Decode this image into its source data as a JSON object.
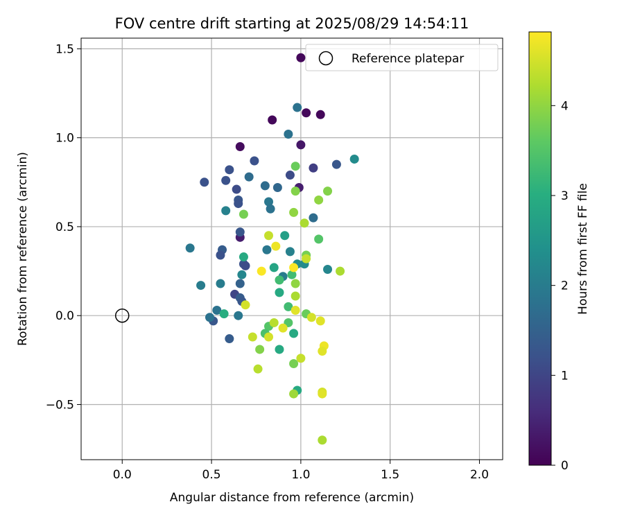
{
  "chart_data": {
    "type": "scatter",
    "title": "FOV centre drift starting at 2025/08/29 14:54:11",
    "xlabel": "Angular distance from reference (arcmin)",
    "ylabel": "Rotation from reference (arcmin)",
    "xlim": [
      -0.23,
      2.13
    ],
    "ylim": [
      -0.81,
      1.56
    ],
    "xticks": [
      0.0,
      0.5,
      1.0,
      1.5,
      2.0
    ],
    "xtick_labels": [
      "0.0",
      "0.5",
      "1.0",
      "1.5",
      "2.0"
    ],
    "yticks": [
      -0.5,
      0.0,
      0.5,
      1.0,
      1.5
    ],
    "ytick_labels": [
      "−0.5",
      "0.0",
      "0.5",
      "1.0",
      "1.5"
    ],
    "grid": true,
    "legend": {
      "placement": "top-right",
      "entries": [
        {
          "label": "Reference platepar",
          "marker": "open-circle",
          "color": "#000000"
        }
      ]
    },
    "reference_point": {
      "x": 0.0,
      "y": 0.0
    },
    "colorbar": {
      "label": "Hours from first FF file",
      "colormap": "viridis",
      "min": 0,
      "max": 4.82,
      "ticks": [
        0,
        1,
        2,
        3,
        4
      ],
      "tick_labels": [
        "0",
        "1",
        "2",
        "3",
        "4"
      ]
    },
    "points": [
      {
        "x": 1.0,
        "y": 1.45,
        "c": 0.1
      },
      {
        "x": 0.84,
        "y": 1.1,
        "c": 0.1
      },
      {
        "x": 1.03,
        "y": 1.14,
        "c": 0.1
      },
      {
        "x": 1.11,
        "y": 1.13,
        "c": 0.1
      },
      {
        "x": 0.66,
        "y": 0.95,
        "c": 0.15
      },
      {
        "x": 1.0,
        "y": 0.96,
        "c": 0.3
      },
      {
        "x": 0.99,
        "y": 0.72,
        "c": 0.4
      },
      {
        "x": 0.66,
        "y": 0.44,
        "c": 0.4
      },
      {
        "x": 0.74,
        "y": 0.87,
        "c": 1.2
      },
      {
        "x": 0.6,
        "y": 0.82,
        "c": 1.2
      },
      {
        "x": 1.07,
        "y": 0.83,
        "c": 0.9
      },
      {
        "x": 1.2,
        "y": 0.85,
        "c": 1.3
      },
      {
        "x": 0.46,
        "y": 0.75,
        "c": 1.2
      },
      {
        "x": 0.58,
        "y": 0.76,
        "c": 1.2
      },
      {
        "x": 0.64,
        "y": 0.71,
        "c": 1.1
      },
      {
        "x": 0.94,
        "y": 0.79,
        "c": 1.1
      },
      {
        "x": 0.65,
        "y": 0.65,
        "c": 1.3
      },
      {
        "x": 0.65,
        "y": 0.63,
        "c": 1.2
      },
      {
        "x": 0.66,
        "y": 0.47,
        "c": 1.3
      },
      {
        "x": 0.56,
        "y": 0.37,
        "c": 1.4
      },
      {
        "x": 0.55,
        "y": 0.34,
        "c": 1.2
      },
      {
        "x": 0.68,
        "y": 0.29,
        "c": 1.2
      },
      {
        "x": 0.69,
        "y": 0.28,
        "c": 1.1
      },
      {
        "x": 0.66,
        "y": 0.18,
        "c": 1.5
      },
      {
        "x": 0.63,
        "y": 0.12,
        "c": 1.0
      },
      {
        "x": 0.66,
        "y": 0.1,
        "c": 1.4
      },
      {
        "x": 0.67,
        "y": 0.08,
        "c": 1.3
      },
      {
        "x": 0.51,
        "y": -0.03,
        "c": 1.3
      },
      {
        "x": 0.6,
        "y": -0.13,
        "c": 1.4
      },
      {
        "x": 0.87,
        "y": 0.72,
        "c": 1.6
      },
      {
        "x": 0.8,
        "y": 0.73,
        "c": 1.7
      },
      {
        "x": 0.71,
        "y": 0.78,
        "c": 1.7
      },
      {
        "x": 0.98,
        "y": 1.17,
        "c": 1.8
      },
      {
        "x": 0.93,
        "y": 1.02,
        "c": 1.8
      },
      {
        "x": 1.3,
        "y": 0.88,
        "c": 2.3
      },
      {
        "x": 0.82,
        "y": 0.64,
        "c": 1.9
      },
      {
        "x": 0.83,
        "y": 0.6,
        "c": 1.8
      },
      {
        "x": 0.58,
        "y": 0.59,
        "c": 2.1
      },
      {
        "x": 1.07,
        "y": 0.55,
        "c": 1.7
      },
      {
        "x": 0.38,
        "y": 0.38,
        "c": 1.9
      },
      {
        "x": 0.81,
        "y": 0.37,
        "c": 1.9
      },
      {
        "x": 0.94,
        "y": 0.36,
        "c": 2.1
      },
      {
        "x": 0.98,
        "y": 0.29,
        "c": 2.3
      },
      {
        "x": 1.02,
        "y": 0.29,
        "c": 2.3
      },
      {
        "x": 1.15,
        "y": 0.26,
        "c": 2.2
      },
      {
        "x": 0.9,
        "y": 0.22,
        "c": 2.0
      },
      {
        "x": 0.44,
        "y": 0.17,
        "c": 2.0
      },
      {
        "x": 0.55,
        "y": 0.18,
        "c": 2.0
      },
      {
        "x": 0.67,
        "y": 0.23,
        "c": 2.2
      },
      {
        "x": 0.49,
        "y": -0.01,
        "c": 1.8
      },
      {
        "x": 0.53,
        "y": 0.03,
        "c": 1.8
      },
      {
        "x": 0.65,
        "y": 0.0,
        "c": 1.9
      },
      {
        "x": 0.91,
        "y": 0.45,
        "c": 2.7
      },
      {
        "x": 0.68,
        "y": 0.33,
        "c": 2.9
      },
      {
        "x": 0.85,
        "y": 0.27,
        "c": 2.8
      },
      {
        "x": 0.88,
        "y": 0.13,
        "c": 2.9
      },
      {
        "x": 0.57,
        "y": 0.01,
        "c": 3.0
      },
      {
        "x": 0.88,
        "y": -0.19,
        "c": 2.9
      },
      {
        "x": 0.96,
        "y": -0.1,
        "c": 2.9
      },
      {
        "x": 0.98,
        "y": -0.42,
        "c": 2.9
      },
      {
        "x": 0.88,
        "y": 0.2,
        "c": 3.3
      },
      {
        "x": 0.95,
        "y": 0.23,
        "c": 3.3
      },
      {
        "x": 0.93,
        "y": 0.05,
        "c": 3.3
      },
      {
        "x": 0.82,
        "y": -0.06,
        "c": 3.5
      },
      {
        "x": 0.8,
        "y": -0.1,
        "c": 3.4
      },
      {
        "x": 0.93,
        "y": -0.04,
        "c": 3.5
      },
      {
        "x": 1.03,
        "y": 0.01,
        "c": 3.7
      },
      {
        "x": 1.03,
        "y": 0.34,
        "c": 3.8
      },
      {
        "x": 1.1,
        "y": 0.43,
        "c": 3.5
      },
      {
        "x": 0.97,
        "y": 0.84,
        "c": 3.7
      },
      {
        "x": 0.97,
        "y": 0.7,
        "c": 3.9
      },
      {
        "x": 1.15,
        "y": 0.7,
        "c": 3.9
      },
      {
        "x": 1.1,
        "y": 0.65,
        "c": 4.0
      },
      {
        "x": 0.96,
        "y": 0.58,
        "c": 4.0
      },
      {
        "x": 1.02,
        "y": 0.52,
        "c": 4.2
      },
      {
        "x": 0.68,
        "y": 0.57,
        "c": 3.8
      },
      {
        "x": 0.97,
        "y": 0.18,
        "c": 4.0
      },
      {
        "x": 1.22,
        "y": 0.25,
        "c": 4.2
      },
      {
        "x": 0.97,
        "y": 0.11,
        "c": 4.2
      },
      {
        "x": 0.77,
        "y": -0.19,
        "c": 3.9
      },
      {
        "x": 0.96,
        "y": -0.27,
        "c": 3.8
      },
      {
        "x": 0.76,
        "y": -0.3,
        "c": 4.3
      },
      {
        "x": 0.96,
        "y": -0.44,
        "c": 4.1
      },
      {
        "x": 1.12,
        "y": -0.7,
        "c": 4.2
      },
      {
        "x": 0.82,
        "y": 0.45,
        "c": 4.4
      },
      {
        "x": 1.03,
        "y": 0.32,
        "c": 4.4
      },
      {
        "x": 0.78,
        "y": 0.25,
        "c": 4.8
      },
      {
        "x": 0.86,
        "y": 0.39,
        "c": 4.7
      },
      {
        "x": 0.96,
        "y": 0.27,
        "c": 4.8
      },
      {
        "x": 0.69,
        "y": 0.06,
        "c": 4.5
      },
      {
        "x": 0.97,
        "y": 0.03,
        "c": 4.6
      },
      {
        "x": 1.06,
        "y": -0.01,
        "c": 4.5
      },
      {
        "x": 1.11,
        "y": -0.03,
        "c": 4.6
      },
      {
        "x": 0.85,
        "y": -0.04,
        "c": 4.3
      },
      {
        "x": 0.9,
        "y": -0.07,
        "c": 4.6
      },
      {
        "x": 0.73,
        "y": -0.12,
        "c": 4.4
      },
      {
        "x": 0.82,
        "y": -0.12,
        "c": 4.5
      },
      {
        "x": 1.13,
        "y": -0.17,
        "c": 4.7
      },
      {
        "x": 1.12,
        "y": -0.2,
        "c": 4.6
      },
      {
        "x": 1.0,
        "y": -0.24,
        "c": 4.4
      },
      {
        "x": 1.12,
        "y": -0.43,
        "c": 4.5
      },
      {
        "x": 1.12,
        "y": -0.44,
        "c": 4.6
      }
    ]
  }
}
